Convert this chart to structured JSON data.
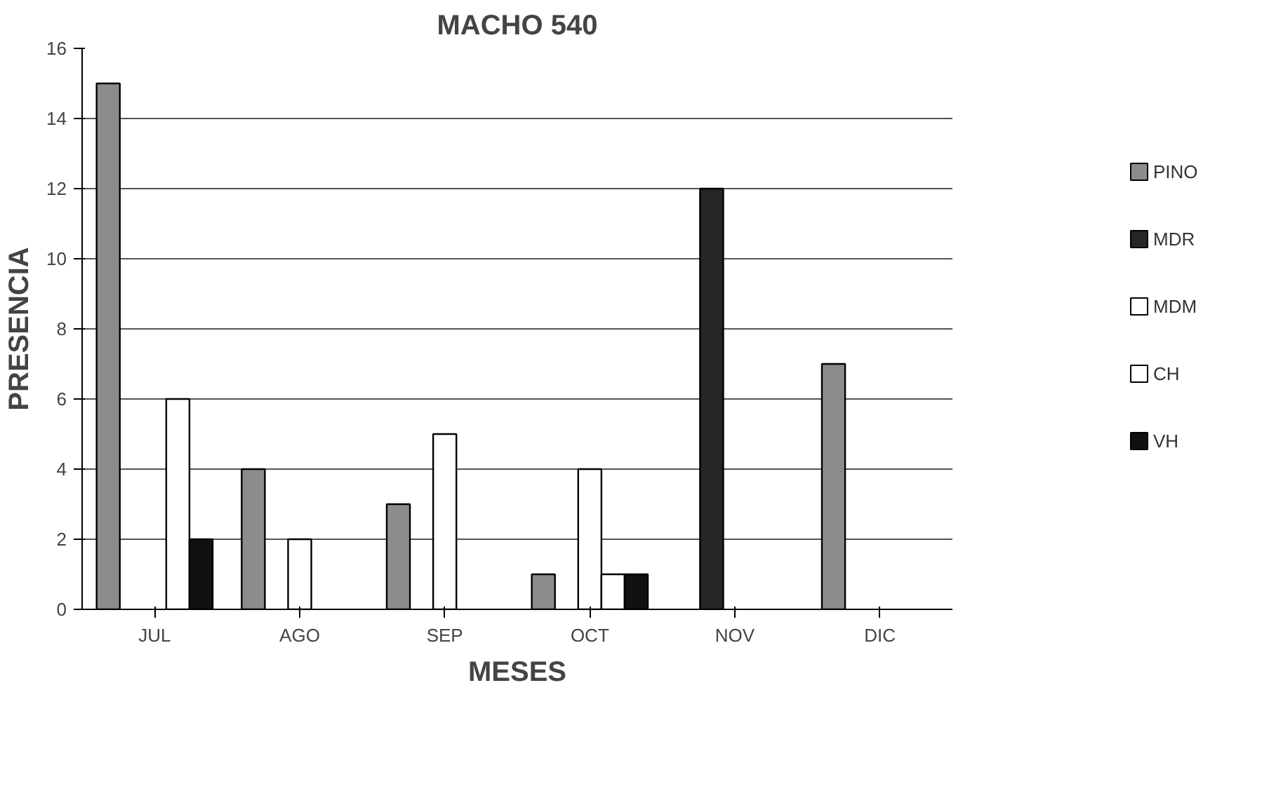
{
  "chart_data": {
    "type": "bar",
    "title": "MACHO 540",
    "xlabel": "MESES",
    "ylabel": "PRESENCIA",
    "categories": [
      "JUL",
      "AGO",
      "SEP",
      "OCT",
      "NOV",
      "DIC"
    ],
    "series": [
      {
        "name": "PINO",
        "color": "#8c8c8c",
        "values": [
          15,
          4,
          3,
          1,
          null,
          7
        ]
      },
      {
        "name": "MDR",
        "color": "#262626",
        "values": [
          null,
          null,
          null,
          null,
          12,
          null
        ]
      },
      {
        "name": "MDM",
        "color": "#ffffff",
        "values": [
          null,
          2,
          5,
          4,
          null,
          null
        ]
      },
      {
        "name": "CH",
        "color": "#ffffff",
        "values": [
          6,
          null,
          null,
          1,
          null,
          null
        ]
      },
      {
        "name": "VH",
        "color": "#111111",
        "values": [
          2,
          null,
          null,
          1,
          null,
          null
        ]
      }
    ],
    "ylim": [
      0,
      16
    ],
    "yticks": [
      0,
      2,
      4,
      6,
      8,
      10,
      12,
      14,
      16
    ],
    "grid": "y",
    "legend": "right"
  }
}
